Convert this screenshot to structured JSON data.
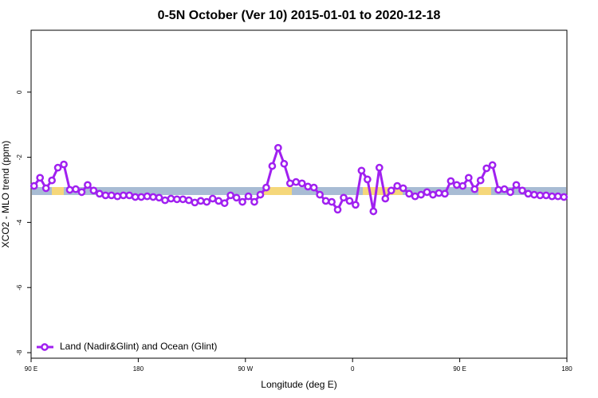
{
  "chart_data": {
    "type": "line",
    "title": "0-5N October (Ver 10)   2015-01-01 to 2020-12-18",
    "x_label": "Longitude (deg E)",
    "y_label": "XCO2 - MLO trend (ppm)",
    "xlim": [
      90,
      540
    ],
    "ylim": [
      -8.17,
      1.9
    ],
    "xticks": [
      {
        "value": 90,
        "label": "90 E"
      },
      180,
      {
        "value": 270,
        "label": "90 W"
      },
      {
        "value": 360,
        "label": "0"
      },
      {
        "value": 450,
        "label": "90 E"
      },
      {
        "value": 540,
        "label": "180"
      }
    ],
    "yticks": [
      0,
      -2,
      -4,
      -6,
      -8
    ],
    "x": [
      92.5,
      97.5,
      102.5,
      107.5,
      112.5,
      117.5,
      122.5,
      127.5,
      132.5,
      137.5,
      142.5,
      147.5,
      152.5,
      157.5,
      162.5,
      167.5,
      172.5,
      177.5,
      182.5,
      187.5,
      192.5,
      197.5,
      202.5,
      207.5,
      212.5,
      217.5,
      222.5,
      227.5,
      232.5,
      237.5,
      242.5,
      247.5,
      252.5,
      257.5,
      262.5,
      267.5,
      272.5,
      277.5,
      282.5,
      287.5,
      292.5,
      297.5,
      302.5,
      307.5,
      312.5,
      317.5,
      322.5,
      327.5,
      332.5,
      337.5,
      342.5,
      347.5,
      352.5,
      357.5,
      362.5,
      367.5,
      372.5,
      377.5,
      382.5,
      387.5,
      392.5,
      397.5,
      402.5,
      407.5,
      412.5,
      417.5,
      422.5,
      427.5,
      432.5,
      437.5,
      442.5,
      447.5,
      452.5,
      457.5,
      462.5,
      467.5,
      472.5,
      477.5,
      482.5,
      487.5,
      492.5,
      497.5,
      502.5,
      507.5,
      512.5,
      517.5,
      522.5,
      527.5,
      532.5,
      537.5
    ],
    "series": [
      {
        "name": "Land (Nadir&Glint) and Ocean (Glint)",
        "color": "#a020f0",
        "values": [
          -2.88,
          -2.63,
          -2.95,
          -2.71,
          -2.32,
          -2.22,
          -3.0,
          -2.98,
          -3.07,
          -2.85,
          -3.02,
          -3.12,
          -3.17,
          -3.17,
          -3.2,
          -3.17,
          -3.17,
          -3.22,
          -3.22,
          -3.2,
          -3.22,
          -3.24,
          -3.32,
          -3.27,
          -3.29,
          -3.29,
          -3.32,
          -3.39,
          -3.34,
          -3.37,
          -3.27,
          -3.34,
          -3.41,
          -3.17,
          -3.24,
          -3.37,
          -3.2,
          -3.37,
          -3.15,
          -2.93,
          -2.27,
          -1.71,
          -2.2,
          -2.8,
          -2.76,
          -2.8,
          -2.9,
          -2.93,
          -3.15,
          -3.34,
          -3.37,
          -3.61,
          -3.24,
          -3.34,
          -3.46,
          -2.41,
          -2.68,
          -3.66,
          -2.32,
          -3.27,
          -3.02,
          -2.88,
          -2.95,
          -3.12,
          -3.2,
          -3.15,
          -3.07,
          -3.15,
          -3.1,
          -3.12,
          -2.73,
          -2.85,
          -2.88,
          -2.63,
          -2.98,
          -2.71,
          -2.34,
          -2.24,
          -3.0,
          -2.98,
          -3.07,
          -2.85,
          -3.02,
          -3.12,
          -3.15,
          -3.17,
          -3.17,
          -3.2,
          -3.2,
          -3.22
        ]
      }
    ],
    "legend": "bottom-left"
  }
}
